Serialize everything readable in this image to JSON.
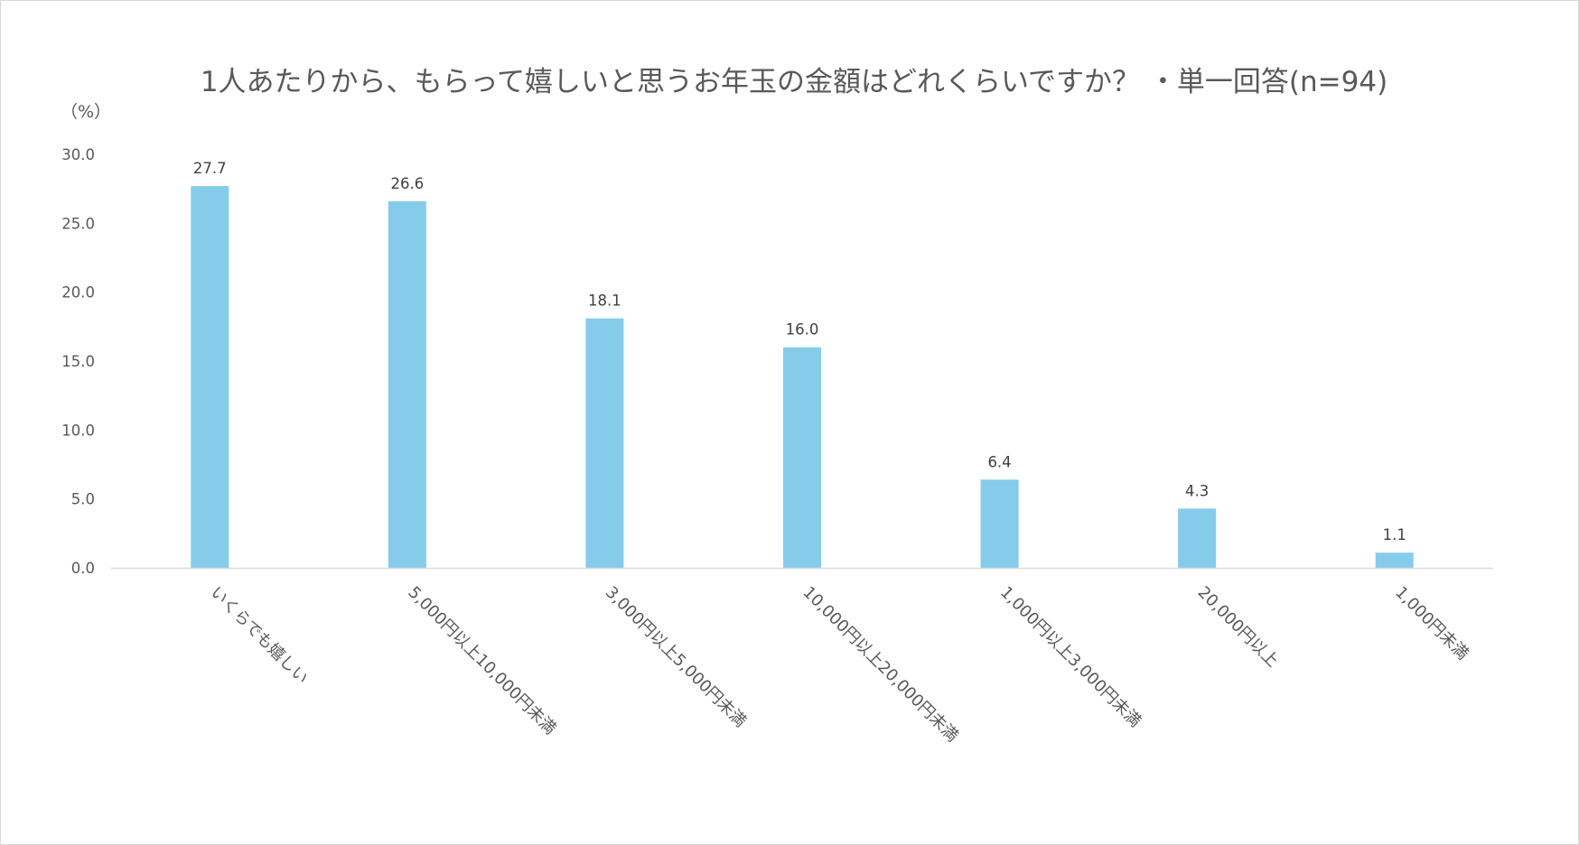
{
  "chart_data": {
    "type": "bar",
    "title": "1人あたりから、もらって嬉しいと思うお年玉の金額はどれくらいですか？ ・単一回答(n=94)",
    "ylabel": "（%）",
    "categories": [
      "いくらでも嬉しい",
      "5,000円以上10,000円未満",
      "3,000円以上5,000円未満",
      "10,000円以上20,000円未満",
      "1,000円以上3,000円未満",
      "20,000円以上",
      "1,000円未満"
    ],
    "values": [
      27.7,
      26.6,
      18.1,
      16.0,
      6.4,
      4.3,
      1.1
    ],
    "data_labels": [
      "27.7",
      "26.6",
      "18.1",
      "16.0",
      "6.4",
      "4.3",
      "1.1"
    ],
    "yticks": [
      "0.0",
      "5.0",
      "10.0",
      "15.0",
      "20.0",
      "25.0",
      "30.0"
    ],
    "ylim": [
      0,
      30
    ],
    "grid": false,
    "bar_color": "#85CCEB",
    "axis_color": "#D9D9D9"
  }
}
